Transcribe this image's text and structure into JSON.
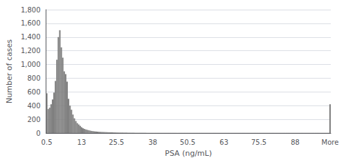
{
  "chart_data": {
    "type": "bar",
    "xlabel": "PSA (ng/mL)",
    "ylabel": "Number of cases",
    "categories": [
      "0.5",
      null,
      null,
      null,
      null,
      null,
      null,
      null,
      null,
      null,
      null,
      null,
      null,
      null,
      null,
      null,
      null,
      null,
      null,
      null,
      null,
      null,
      null,
      null,
      "13",
      null,
      null,
      null,
      null,
      null,
      null,
      null,
      null,
      null,
      null,
      null,
      null,
      null,
      null,
      null,
      null,
      null,
      null,
      null,
      null,
      null,
      null,
      null,
      "25.5",
      null,
      null,
      null,
      null,
      null,
      null,
      null,
      null,
      null,
      null,
      null,
      null,
      null,
      null,
      null,
      null,
      null,
      null,
      null,
      null,
      null,
      null,
      null,
      null,
      "38",
      null,
      null,
      null,
      null,
      null,
      null,
      null,
      null,
      null,
      null,
      null,
      null,
      null,
      null,
      null,
      null,
      null,
      null,
      null,
      null,
      null,
      null,
      null,
      "50.5",
      null,
      null,
      null,
      null,
      null,
      null,
      null,
      null,
      null,
      null,
      null,
      null,
      null,
      null,
      null,
      null,
      null,
      null,
      null,
      null,
      null,
      null,
      null,
      null,
      "63",
      null,
      null,
      null,
      null,
      null,
      null,
      null,
      null,
      null,
      null,
      null,
      null,
      null,
      null,
      null,
      null,
      null,
      null,
      null,
      null,
      null,
      null,
      null,
      "75.5",
      null,
      null,
      null,
      null,
      null,
      null,
      null,
      null,
      null,
      null,
      null,
      null,
      null,
      null,
      null,
      null,
      null,
      null,
      null,
      null,
      null,
      null,
      null,
      null,
      "88",
      null,
      null,
      null,
      null,
      null,
      null,
      null,
      null,
      null,
      null,
      null,
      null,
      null,
      null,
      null,
      null,
      null,
      null,
      null,
      null,
      null,
      null,
      null,
      "More"
    ],
    "values": [
      580,
      350,
      370,
      420,
      490,
      590,
      760,
      1070,
      1400,
      1500,
      1250,
      1100,
      900,
      860,
      750,
      500,
      400,
      340,
      270,
      215,
      175,
      145,
      125,
      105,
      85,
      70,
      60,
      52,
      46,
      40,
      35,
      30,
      27,
      24,
      22,
      20,
      18,
      17,
      16,
      15,
      14,
      13,
      12,
      11,
      10,
      10,
      9,
      9,
      8,
      8,
      7,
      7,
      7,
      6,
      6,
      6,
      5,
      5,
      5,
      5,
      5,
      4,
      4,
      4,
      4,
      4,
      4,
      4,
      4,
      3,
      3,
      3,
      3,
      3,
      3,
      3,
      3,
      3,
      3,
      3,
      3,
      3,
      3,
      3,
      3,
      3,
      3,
      3,
      3,
      3,
      3,
      3,
      3,
      3,
      3,
      3,
      3,
      3,
      3,
      3,
      3,
      3,
      3,
      3,
      3,
      3,
      3,
      3,
      3,
      3,
      3,
      3,
      3,
      3,
      3,
      3,
      3,
      3,
      3,
      3,
      3,
      3,
      3,
      3,
      3,
      3,
      3,
      3,
      3,
      3,
      3,
      3,
      3,
      3,
      3,
      3,
      3,
      3,
      3,
      3,
      3,
      3,
      3,
      3,
      3,
      3,
      3,
      3,
      3,
      3,
      3,
      3,
      3,
      3,
      3,
      3,
      3,
      3,
      3,
      3,
      3,
      3,
      3,
      3,
      3,
      3,
      3,
      3,
      3,
      3,
      3,
      3,
      3,
      3,
      3,
      3,
      3,
      3,
      3,
      3,
      3,
      3,
      3,
      3,
      3,
      3,
      3,
      3,
      3,
      3,
      3,
      3,
      3,
      3,
      3,
      420
    ],
    "color": "#808080",
    "ylim": [
      0,
      1800
    ],
    "yticks": [
      0,
      200,
      400,
      600,
      800,
      1000,
      1200,
      1400,
      1600,
      1800
    ],
    "grid": true
  }
}
